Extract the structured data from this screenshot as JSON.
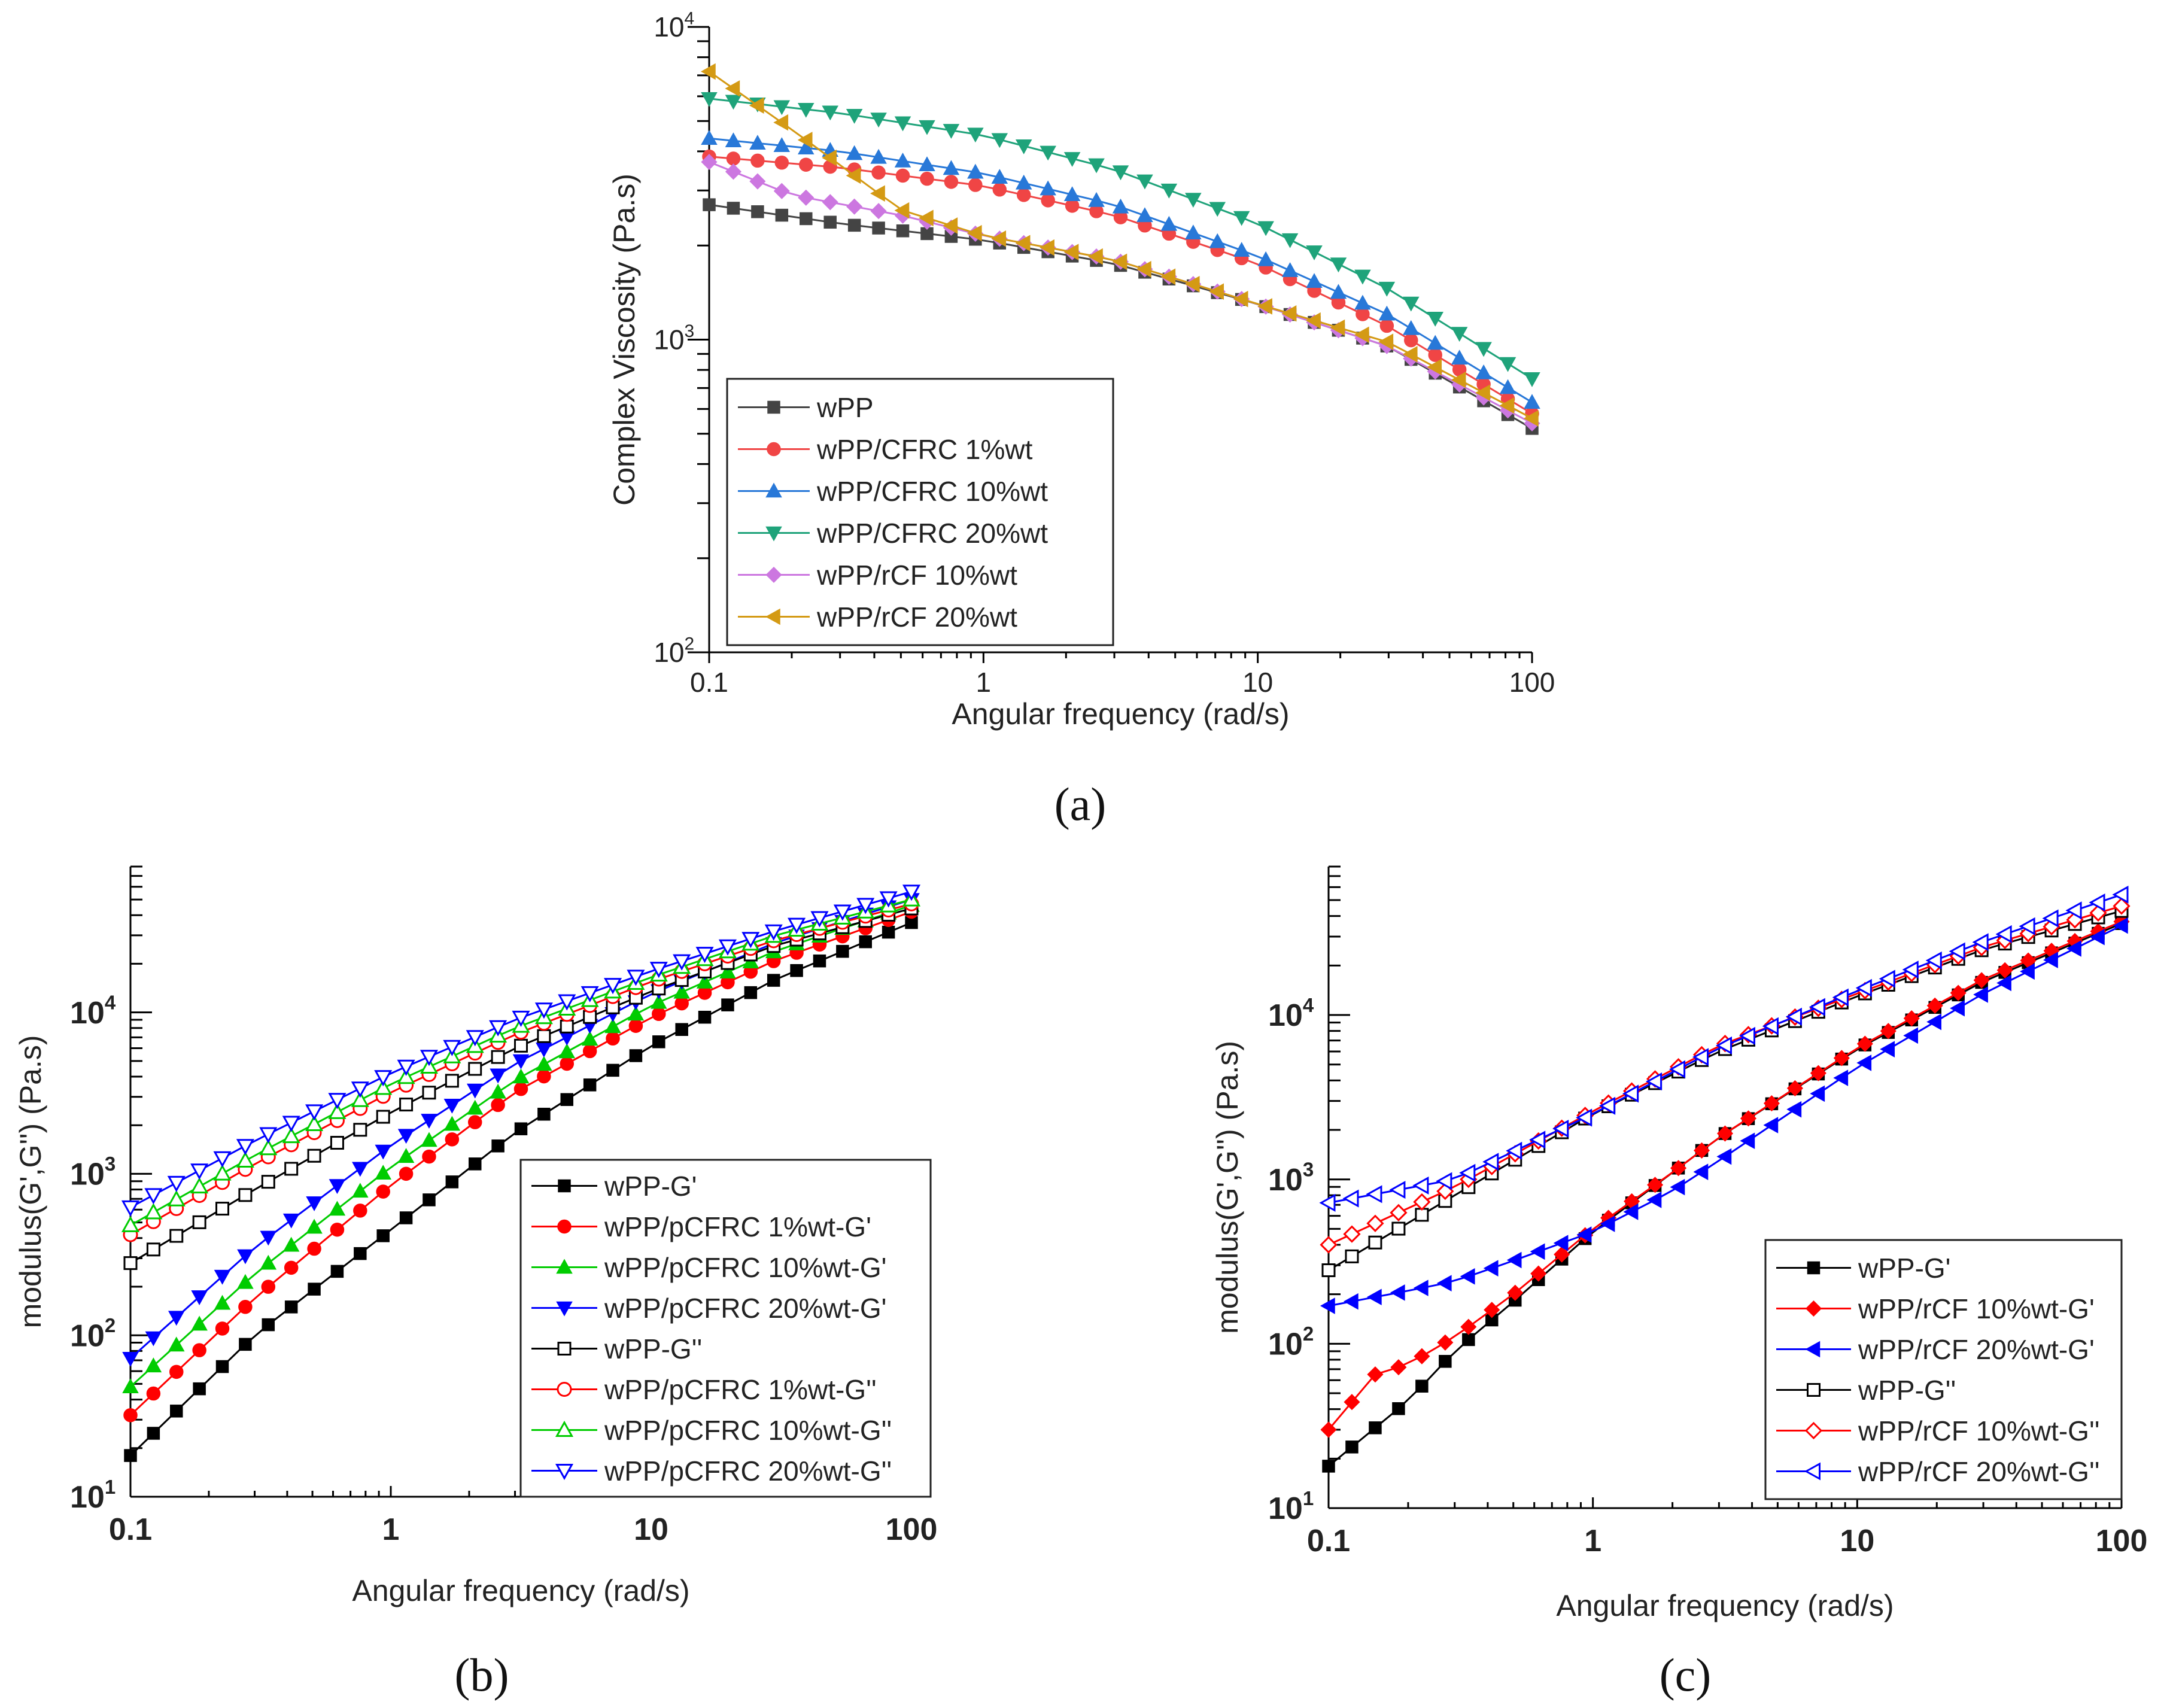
{
  "chart_data": [
    {
      "id": "a",
      "type": "line",
      "caption": "(a)",
      "xlabel": "Angular frequency (rad/s)",
      "ylabel": "Complex Viscosity (Pa.s)",
      "xscale": "log",
      "yscale": "log",
      "xlim": [
        0.1,
        100
      ],
      "ylim": [
        100,
        10000
      ],
      "xticks": [
        "0.1",
        "1",
        "10",
        "100"
      ],
      "yticks": [
        {
          "base": "10",
          "exp": "2"
        },
        {
          "base": "10",
          "exp": "3"
        },
        {
          "base": "10",
          "exp": "4"
        }
      ],
      "legend_position": "bottom-left",
      "series": [
        {
          "name": "wPP",
          "color": "#444444",
          "marker": "square",
          "filled": true,
          "anchors": [
            [
              0.1,
              2700
            ],
            [
              0.3,
              2350
            ],
            [
              1,
              2080
            ],
            [
              3,
              1750
            ],
            [
              10,
              1300
            ],
            [
              30,
              950
            ],
            [
              100,
              520
            ]
          ]
        },
        {
          "name": "wPP/CFRC 1%wt",
          "color": "#f04545",
          "marker": "circle",
          "filled": true,
          "anchors": [
            [
              0.1,
              3850
            ],
            [
              0.3,
              3550
            ],
            [
              1,
              3100
            ],
            [
              3,
              2500
            ],
            [
              10,
              1750
            ],
            [
              30,
              1100
            ],
            [
              100,
              580
            ]
          ]
        },
        {
          "name": "wPP/CFRC 10%wt",
          "color": "#2878d8",
          "marker": "triangle-up",
          "filled": true,
          "anchors": [
            [
              0.1,
              4400
            ],
            [
              0.3,
              4000
            ],
            [
              1,
              3400
            ],
            [
              3,
              2700
            ],
            [
              10,
              1850
            ],
            [
              30,
              1200
            ],
            [
              100,
              630
            ]
          ]
        },
        {
          "name": "wPP/CFRC 20%wt",
          "color": "#1fa37a",
          "marker": "triangle-down",
          "filled": true,
          "anchors": [
            [
              0.1,
              5900
            ],
            [
              0.3,
              5300
            ],
            [
              1,
              4500
            ],
            [
              3,
              3500
            ],
            [
              10,
              2350
            ],
            [
              30,
              1450
            ],
            [
              100,
              750
            ]
          ]
        },
        {
          "name": "wPP/rCF 10%wt",
          "color": "#cc77e0",
          "marker": "diamond",
          "filled": true,
          "anchors": [
            [
              0.1,
              3700
            ],
            [
              0.2,
              2900
            ],
            [
              0.5,
              2500
            ],
            [
              1,
              2150
            ],
            [
              3,
              1800
            ],
            [
              10,
              1300
            ],
            [
              30,
              950
            ],
            [
              100,
              540
            ]
          ]
        },
        {
          "name": "wPP/rCF 20%wt",
          "color": "#d49a14",
          "marker": "triangle-left",
          "filled": true,
          "anchors": [
            [
              0.1,
              7200
            ],
            [
              0.2,
              4700
            ],
            [
              0.5,
              2600
            ],
            [
              1,
              2150
            ],
            [
              3,
              1800
            ],
            [
              10,
              1300
            ],
            [
              30,
              980
            ],
            [
              100,
              560
            ]
          ]
        }
      ]
    },
    {
      "id": "b",
      "type": "line",
      "caption": "(b)",
      "xlabel": "Angular frequency (rad/s)",
      "ylabel": "modulus(G',G'') (Pa.s)",
      "xscale": "log",
      "yscale": "log",
      "xlim": [
        0.1,
        100
      ],
      "ylim": [
        10,
        80000
      ],
      "xticks": [
        "0.1",
        "1",
        "10",
        "100"
      ],
      "yticks": [
        {
          "base": "10",
          "exp": "1"
        },
        {
          "base": "10",
          "exp": "2"
        },
        {
          "base": "10",
          "exp": "3"
        },
        {
          "base": "10",
          "exp": "4"
        }
      ],
      "legend_position": "bottom-right",
      "series": [
        {
          "name": "wPP-G'",
          "color": "#000000",
          "marker": "square",
          "filled": true,
          "anchors": [
            [
              0.1,
              18
            ],
            [
              0.3,
              100
            ],
            [
              1,
              450
            ],
            [
              3,
              1800
            ],
            [
              10,
              6200
            ],
            [
              30,
              16000
            ],
            [
              100,
              36000
            ]
          ]
        },
        {
          "name": "wPP/pCFRC 1%wt-G'",
          "color": "#ff0000",
          "marker": "circle",
          "filled": true,
          "anchors": [
            [
              0.1,
              32
            ],
            [
              0.3,
              170
            ],
            [
              1,
              850
            ],
            [
              3,
              3200
            ],
            [
              10,
              9300
            ],
            [
              30,
              21000
            ],
            [
              100,
              42000
            ]
          ]
        },
        {
          "name": "wPP/pCFRC 10%wt-G'",
          "color": "#00cc00",
          "marker": "triangle-up",
          "filled": true,
          "anchors": [
            [
              0.1,
              48
            ],
            [
              0.3,
              240
            ],
            [
              1,
              1100
            ],
            [
              3,
              3800
            ],
            [
              10,
              11000
            ],
            [
              30,
              24000
            ],
            [
              100,
              46000
            ]
          ]
        },
        {
          "name": "wPP/pCFRC 20%wt-G'",
          "color": "#0000ff",
          "marker": "triangle-down",
          "filled": true,
          "anchors": [
            [
              0.1,
              72
            ],
            [
              0.3,
              350
            ],
            [
              1,
              1500
            ],
            [
              3,
              4800
            ],
            [
              10,
              13000
            ],
            [
              30,
              27000
            ],
            [
              100,
              50000
            ]
          ]
        },
        {
          "name": "wPP-G''",
          "color": "#000000",
          "marker": "square",
          "filled": false,
          "anchors": [
            [
              0.1,
              280
            ],
            [
              0.3,
              800
            ],
            [
              1,
              2400
            ],
            [
              3,
              6000
            ],
            [
              10,
              13500
            ],
            [
              30,
              26000
            ],
            [
              100,
              44000
            ]
          ]
        },
        {
          "name": "wPP/pCFRC 1%wt-G''",
          "color": "#ff0000",
          "marker": "circle",
          "filled": false,
          "anchors": [
            [
              0.1,
              420
            ],
            [
              0.3,
              1150
            ],
            [
              1,
              3200
            ],
            [
              3,
              7300
            ],
            [
              10,
              15500
            ],
            [
              30,
              28000
            ],
            [
              100,
              47000
            ]
          ]
        },
        {
          "name": "wPP/pCFRC 10%wt-G''",
          "color": "#00cc00",
          "marker": "triangle-up",
          "filled": false,
          "anchors": [
            [
              0.1,
              480
            ],
            [
              0.3,
              1300
            ],
            [
              1,
              3600
            ],
            [
              3,
              8000
            ],
            [
              10,
              16500
            ],
            [
              30,
              30000
            ],
            [
              100,
              50000
            ]
          ]
        },
        {
          "name": "wPP/pCFRC 20%wt-G''",
          "color": "#0000ff",
          "marker": "triangle-down",
          "filled": false,
          "anchors": [
            [
              0.1,
              620
            ],
            [
              0.3,
              1600
            ],
            [
              1,
              4200
            ],
            [
              3,
              9000
            ],
            [
              10,
              18000
            ],
            [
              30,
              32000
            ],
            [
              100,
              56000
            ]
          ]
        }
      ]
    },
    {
      "id": "c",
      "type": "line",
      "caption": "(c)",
      "xlabel": "Angular frequency (rad/s)",
      "ylabel": "modulus(G',G'') (Pa.s)",
      "xscale": "log",
      "yscale": "log",
      "xlim": [
        0.1,
        100
      ],
      "ylim": [
        10,
        80000
      ],
      "xticks": [
        "0.1",
        "1",
        "10",
        "100"
      ],
      "yticks": [
        {
          "base": "10",
          "exp": "1"
        },
        {
          "base": "10",
          "exp": "2"
        },
        {
          "base": "10",
          "exp": "3"
        },
        {
          "base": "10",
          "exp": "4"
        }
      ],
      "legend_position": "bottom-right",
      "series": [
        {
          "name": "wPP-G'",
          "color": "#000000",
          "marker": "square",
          "filled": true,
          "anchors": [
            [
              0.1,
              18
            ],
            [
              0.2,
              45
            ],
            [
              0.3,
              90
            ],
            [
              0.5,
              180
            ],
            [
              1,
              480
            ],
            [
              2,
              1100
            ],
            [
              3,
              1800
            ],
            [
              10,
              6200
            ],
            [
              30,
              16000
            ],
            [
              100,
              36000
            ]
          ]
        },
        {
          "name": "wPP/rCF 10%wt-G'",
          "color": "#ff0000",
          "marker": "diamond",
          "filled": true,
          "anchors": [
            [
              0.1,
              30
            ],
            [
              0.15,
              65
            ],
            [
              0.2,
              75
            ],
            [
              0.3,
              110
            ],
            [
              0.5,
              200
            ],
            [
              1,
              500
            ],
            [
              2,
              1100
            ],
            [
              3,
              1800
            ],
            [
              10,
              6300
            ],
            [
              30,
              16500
            ],
            [
              100,
              37000
            ]
          ]
        },
        {
          "name": "wPP/rCF 20%wt-G'",
          "color": "#0000ff",
          "marker": "triangle-left",
          "filled": true,
          "anchors": [
            [
              0.1,
              170
            ],
            [
              0.2,
              210
            ],
            [
              0.3,
              240
            ],
            [
              0.5,
              320
            ],
            [
              1,
              480
            ],
            [
              2,
              850
            ],
            [
              3,
              1300
            ],
            [
              10,
              4800
            ],
            [
              30,
              13500
            ],
            [
              100,
              35000
            ]
          ]
        },
        {
          "name": "wPP-G''",
          "color": "#000000",
          "marker": "square",
          "filled": false,
          "anchors": [
            [
              0.1,
              280
            ],
            [
              0.3,
              800
            ],
            [
              1,
              2500
            ],
            [
              3,
              6000
            ],
            [
              10,
              13000
            ],
            [
              30,
              25000
            ],
            [
              100,
              43000
            ]
          ]
        },
        {
          "name": "wPP/rCF 10%wt-G''",
          "color": "#ff0000",
          "marker": "diamond",
          "filled": false,
          "anchors": [
            [
              0.1,
              400
            ],
            [
              0.3,
              900
            ],
            [
              1,
              2600
            ],
            [
              3,
              6500
            ],
            [
              10,
              13500
            ],
            [
              30,
              26000
            ],
            [
              100,
              46000
            ]
          ]
        },
        {
          "name": "wPP/rCF 20%wt-G''",
          "color": "#0000ff",
          "marker": "triangle-left",
          "filled": false,
          "anchors": [
            [
              0.1,
              720
            ],
            [
              0.3,
              1000
            ],
            [
              1,
              2500
            ],
            [
              3,
              6300
            ],
            [
              10,
              14000
            ],
            [
              30,
              28000
            ],
            [
              100,
              54000
            ]
          ]
        }
      ]
    }
  ]
}
